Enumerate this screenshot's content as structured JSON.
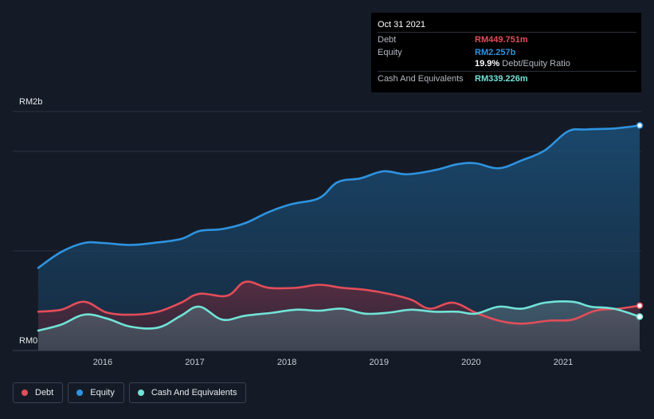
{
  "chart_data": {
    "type": "area",
    "currency_prefix": "RM",
    "y_label_top": "RM2b",
    "y_label_bottom": "RM0",
    "ylim": [
      0,
      2.4
    ],
    "xlim": [
      2015.3,
      2021.83
    ],
    "x_ticks": [
      {
        "value": 2016,
        "label": "2016"
      },
      {
        "value": 2017,
        "label": "2017"
      },
      {
        "value": 2018,
        "label": "2018"
      },
      {
        "value": 2019,
        "label": "2019"
      },
      {
        "value": 2020,
        "label": "2020"
      },
      {
        "value": 2021,
        "label": "2021"
      }
    ],
    "gridlines": [
      0,
      1.0,
      2.0,
      2.4
    ],
    "series": [
      {
        "name": "Equity",
        "color": "#2e93e0",
        "x": [
          2015.3,
          2015.55,
          2015.8,
          2016.0,
          2016.3,
          2016.55,
          2016.85,
          2017.05,
          2017.3,
          2017.55,
          2017.8,
          2018.05,
          2018.35,
          2018.55,
          2018.8,
          2019.05,
          2019.3,
          2019.6,
          2019.85,
          2020.05,
          2020.3,
          2020.55,
          2020.8,
          2021.05,
          2021.25,
          2021.55,
          2021.83
        ],
        "values": [
          0.83,
          0.99,
          1.08,
          1.08,
          1.06,
          1.08,
          1.12,
          1.2,
          1.22,
          1.28,
          1.39,
          1.47,
          1.53,
          1.69,
          1.73,
          1.8,
          1.77,
          1.81,
          1.87,
          1.88,
          1.83,
          1.91,
          2.01,
          2.2,
          2.22,
          2.23,
          2.26
        ]
      },
      {
        "name": "Debt",
        "color": "#e34d59",
        "x": [
          2015.3,
          2015.55,
          2015.8,
          2016.05,
          2016.35,
          2016.6,
          2016.85,
          2017.05,
          2017.35,
          2017.55,
          2017.8,
          2018.1,
          2018.35,
          2018.6,
          2018.85,
          2019.1,
          2019.35,
          2019.55,
          2019.8,
          2020.05,
          2020.3,
          2020.55,
          2020.85,
          2021.1,
          2021.35,
          2021.6,
          2021.83
        ],
        "values": [
          0.39,
          0.41,
          0.49,
          0.38,
          0.36,
          0.39,
          0.48,
          0.57,
          0.55,
          0.69,
          0.63,
          0.63,
          0.66,
          0.63,
          0.61,
          0.57,
          0.51,
          0.42,
          0.48,
          0.38,
          0.3,
          0.27,
          0.3,
          0.31,
          0.4,
          0.42,
          0.45
        ]
      },
      {
        "name": "Cash And Equivalents",
        "color": "#71e3d6",
        "x": [
          2015.3,
          2015.55,
          2015.8,
          2016.05,
          2016.3,
          2016.6,
          2016.85,
          2017.05,
          2017.3,
          2017.55,
          2017.85,
          2018.1,
          2018.35,
          2018.6,
          2018.85,
          2019.1,
          2019.35,
          2019.6,
          2019.85,
          2020.05,
          2020.3,
          2020.55,
          2020.8,
          2021.1,
          2021.3,
          2021.55,
          2021.83
        ],
        "values": [
          0.2,
          0.26,
          0.36,
          0.32,
          0.24,
          0.23,
          0.35,
          0.44,
          0.31,
          0.35,
          0.38,
          0.41,
          0.4,
          0.42,
          0.37,
          0.38,
          0.41,
          0.39,
          0.39,
          0.37,
          0.44,
          0.42,
          0.48,
          0.49,
          0.44,
          0.42,
          0.34
        ]
      }
    ],
    "tooltip": {
      "date": "Oct 31 2021",
      "debt_label": "Debt",
      "debt_value": "RM449.751m",
      "equity_label": "Equity",
      "equity_value": "RM2.257b",
      "ratio_value": "19.9%",
      "ratio_text": "Debt/Equity Ratio",
      "cash_label": "Cash And Equivalents",
      "cash_value": "RM339.226m"
    },
    "legend": [
      {
        "name": "Debt",
        "color": "#e34d59"
      },
      {
        "name": "Equity",
        "color": "#2e93e0"
      },
      {
        "name": "Cash And Equivalents",
        "color": "#71e3d6"
      }
    ]
  }
}
